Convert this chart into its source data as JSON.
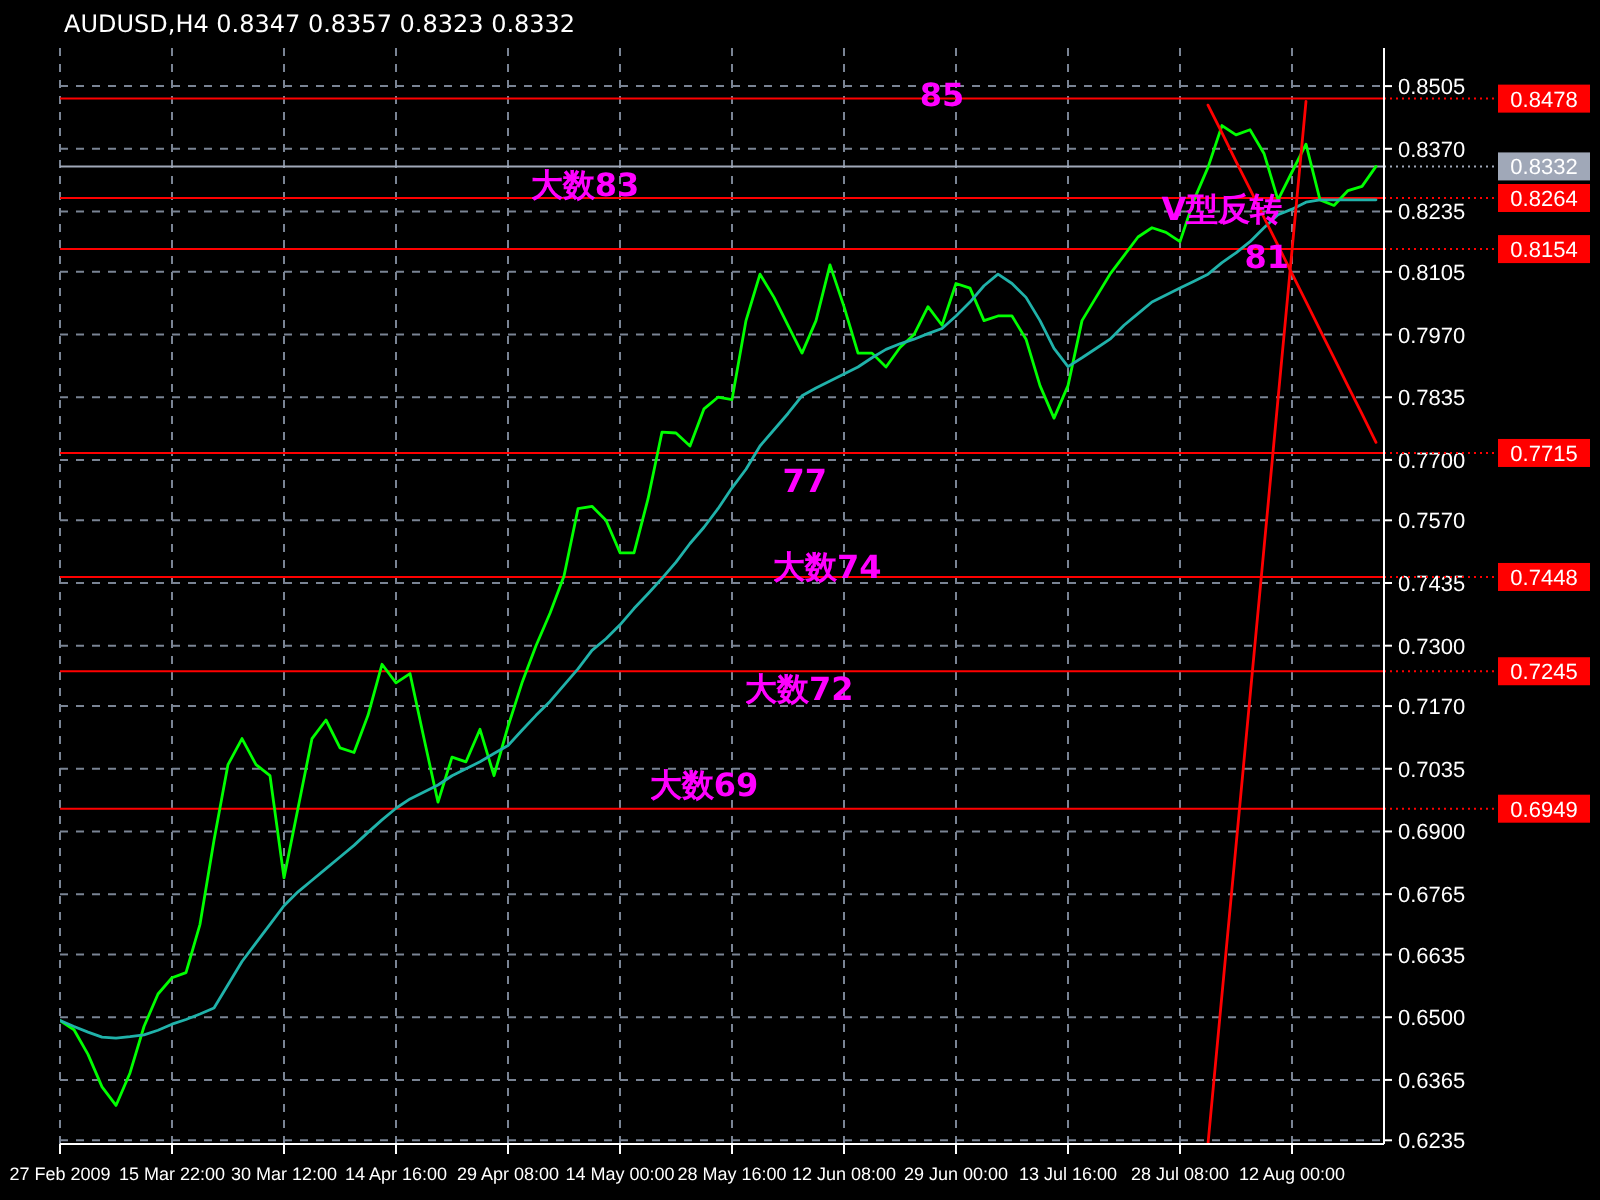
{
  "chart_data": {
    "type": "line",
    "title": "AUDUSD,H4 0.8347 0.8357 0.8323 0.8332",
    "categories": [
      "27 Feb 2009",
      null,
      null,
      null,
      null,
      null,
      null,
      null,
      "15 Mar 22:00",
      null,
      null,
      null,
      null,
      null,
      null,
      null,
      "30 Mar 12:00",
      null,
      null,
      null,
      null,
      null,
      null,
      null,
      "14 Apr 16:00",
      null,
      null,
      null,
      null,
      null,
      null,
      null,
      "29 Apr 08:00",
      null,
      null,
      null,
      null,
      null,
      null,
      null,
      "14 May 00:00",
      null,
      null,
      null,
      null,
      null,
      null,
      null,
      "28 May 16:00",
      null,
      null,
      null,
      null,
      null,
      null,
      null,
      "12 Jun 08:00",
      null,
      null,
      null,
      null,
      null,
      null,
      null,
      "29 Jun 00:00",
      null,
      null,
      null,
      null,
      null,
      null,
      null,
      "13 Jul 16:00",
      null,
      null,
      null,
      null,
      null,
      null,
      null,
      "28 Jul 08:00",
      null,
      null,
      null,
      null,
      null,
      null,
      null,
      "12 Aug 00:00",
      null,
      null,
      null,
      null,
      null,
      null
    ],
    "ylim": [
      0.6227,
      0.8587
    ],
    "yticks": [
      {
        "value": 0.8505,
        "label": "0.8505"
      },
      {
        "value": 0.837,
        "label": "0.8370"
      },
      {
        "value": 0.8235,
        "label": "0.8235"
      },
      {
        "value": 0.8105,
        "label": "0.8105"
      },
      {
        "value": 0.797,
        "label": "0.7970"
      },
      {
        "value": 0.7835,
        "label": "0.7835"
      },
      {
        "value": 0.77,
        "label": "0.7700"
      },
      {
        "value": 0.757,
        "label": "0.7570"
      },
      {
        "value": 0.7435,
        "label": "0.7435"
      },
      {
        "value": 0.73,
        "label": "0.7300"
      },
      {
        "value": 0.717,
        "label": "0.7170"
      },
      {
        "value": 0.7035,
        "label": "0.7035"
      },
      {
        "value": 0.69,
        "label": "0.6900"
      },
      {
        "value": 0.6765,
        "label": "0.6765"
      },
      {
        "value": 0.6635,
        "label": "0.6635"
      },
      {
        "value": 0.65,
        "label": "0.6500"
      },
      {
        "value": 0.6365,
        "label": "0.6365"
      },
      {
        "value": 0.6235,
        "label": "0.6235"
      }
    ],
    "grid": true,
    "line_style": "solid",
    "series": [
      {
        "color": "#00ff00",
        "values": [
          0.6493,
          0.6473,
          0.642,
          0.635,
          0.631,
          0.638,
          0.648,
          0.655,
          0.6585,
          0.6596,
          0.67,
          0.6881,
          0.7044,
          0.71,
          0.7044,
          0.702,
          0.68,
          0.695,
          0.71,
          0.714,
          0.708,
          0.707,
          0.715,
          0.726,
          0.722,
          0.724,
          0.71,
          0.6963,
          0.706,
          0.705,
          0.712,
          0.702,
          0.7126,
          0.722,
          0.73,
          0.737,
          0.745,
          0.7595,
          0.76,
          0.757,
          0.75,
          0.75,
          0.7616,
          0.776,
          0.7758,
          0.773,
          0.781,
          0.7835,
          0.783,
          0.8,
          0.81,
          0.805,
          0.799,
          0.793,
          0.8,
          0.812,
          0.803,
          0.793,
          0.793,
          0.79,
          0.7942,
          0.797,
          0.803,
          0.799,
          0.808,
          0.807,
          0.8,
          0.801,
          0.801,
          0.796,
          0.786,
          0.779,
          0.786,
          0.8,
          0.805,
          0.81,
          0.814,
          0.818,
          0.82,
          0.819,
          0.817,
          0.826,
          0.833,
          0.842,
          0.84,
          0.8411,
          0.836,
          0.826,
          0.832,
          0.838,
          0.826,
          0.8248,
          0.828,
          0.8289,
          0.8332
        ]
      },
      {
        "color": "#20b2aa",
        "values": [
          0.6493,
          0.648,
          0.6468,
          0.6457,
          0.6455,
          0.6458,
          0.6462,
          0.6472,
          0.6485,
          0.6495,
          0.6507,
          0.652,
          0.657,
          0.662,
          0.666,
          0.67,
          0.674,
          0.677,
          0.6795,
          0.682,
          0.6845,
          0.687,
          0.6898,
          0.6925,
          0.695,
          0.697,
          0.6985,
          0.7,
          0.702,
          0.7035,
          0.705,
          0.7068,
          0.7085,
          0.7118,
          0.715,
          0.718,
          0.7215,
          0.725,
          0.729,
          0.7315,
          0.7345,
          0.738,
          0.7412,
          0.7445,
          0.748,
          0.752,
          0.7555,
          0.7595,
          0.764,
          0.768,
          0.773,
          0.7765,
          0.78,
          0.7838,
          0.7855,
          0.787,
          0.7885,
          0.79,
          0.792,
          0.7938,
          0.795,
          0.796,
          0.7972,
          0.7983,
          0.801,
          0.804,
          0.8075,
          0.81,
          0.808,
          0.805,
          0.8,
          0.794,
          0.7901,
          0.792,
          0.794,
          0.796,
          0.799,
          0.8015,
          0.804,
          0.8055,
          0.807,
          0.8085,
          0.81,
          0.8125,
          0.8146,
          0.817,
          0.82,
          0.8228,
          0.824,
          0.8255,
          0.826,
          0.826,
          0.826,
          0.826,
          0.826
        ]
      },
      {
        "color": "#ff0000",
        "values": [
          null,
          null,
          null,
          null,
          null,
          null,
          null,
          null,
          null,
          null,
          null,
          null,
          null,
          null,
          null,
          null,
          null,
          null,
          null,
          null,
          null,
          null,
          null,
          null,
          null,
          null,
          null,
          null,
          null,
          null,
          null,
          null,
          null,
          null,
          null,
          null,
          null,
          null,
          null,
          null,
          null,
          null,
          null,
          null,
          null,
          null,
          null,
          null,
          null,
          null,
          null,
          null,
          null,
          null,
          null,
          null,
          null,
          null,
          null,
          null,
          null,
          null,
          null,
          null,
          null,
          null,
          null,
          null,
          null,
          null,
          null,
          null,
          null,
          null,
          null,
          null,
          null,
          null,
          null,
          null,
          null,
          null,
          0.6228,
          0.6549,
          0.6869,
          0.719,
          0.751,
          0.7831,
          0.8151,
          0.8472,
          null,
          null,
          null,
          null,
          null
        ]
      },
      {
        "color": "#ff0000",
        "values": [
          null,
          null,
          null,
          null,
          null,
          null,
          null,
          null,
          null,
          null,
          null,
          null,
          null,
          null,
          null,
          null,
          null,
          null,
          null,
          null,
          null,
          null,
          null,
          null,
          null,
          null,
          null,
          null,
          null,
          null,
          null,
          null,
          null,
          null,
          null,
          null,
          null,
          null,
          null,
          null,
          null,
          null,
          null,
          null,
          null,
          null,
          null,
          null,
          null,
          null,
          null,
          null,
          null,
          null,
          null,
          null,
          null,
          null,
          null,
          null,
          null,
          null,
          null,
          null,
          null,
          null,
          null,
          null,
          null,
          null,
          null,
          null,
          null,
          null,
          null,
          null,
          null,
          null,
          null,
          null,
          null,
          null,
          0.8464,
          0.8404,
          0.8343,
          0.8283,
          0.8222,
          0.8162,
          0.8101,
          0.8041,
          0.798,
          0.792,
          0.7859,
          0.7799,
          0.7738
        ]
      }
    ],
    "ref_lines": [
      {
        "axis": "y",
        "value": 0.8478,
        "label": "0.8478",
        "color": "#ff0000"
      },
      {
        "axis": "y",
        "value": 0.8332,
        "label": "0.8332",
        "color": "#a0a8b8"
      },
      {
        "axis": "y",
        "value": 0.8264,
        "label": "0.8264",
        "color": "#ff0000"
      },
      {
        "axis": "y",
        "value": 0.8154,
        "label": "0.8154",
        "color": "#ff0000"
      },
      {
        "axis": "y",
        "value": 0.7715,
        "label": "0.7715",
        "color": "#ff0000"
      },
      {
        "axis": "y",
        "value": 0.7448,
        "label": "0.7448",
        "color": "#ff0000"
      },
      {
        "axis": "y",
        "value": 0.7245,
        "label": "0.7245",
        "color": "#ff0000"
      },
      {
        "axis": "y",
        "value": 0.6949,
        "label": "0.6949",
        "color": "#ff0000"
      }
    ],
    "annotations": [
      "85",
      "大数83",
      "77",
      "大数74",
      "大数72",
      "大数69",
      "81",
      "V型反转"
    ]
  }
}
